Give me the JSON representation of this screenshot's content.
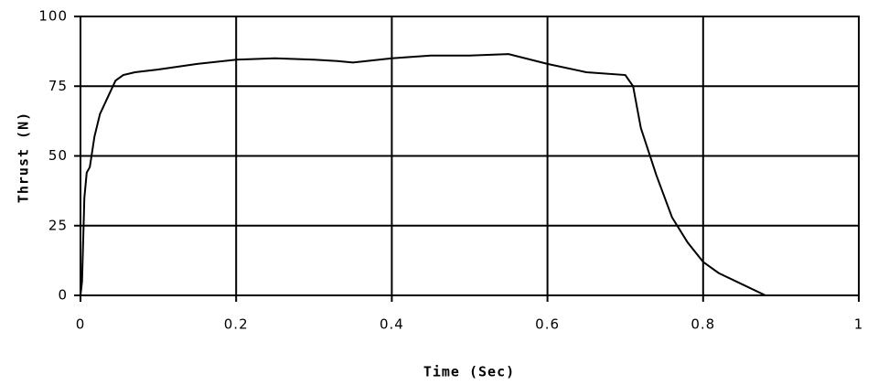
{
  "chart_data": {
    "type": "line",
    "xlabel": "Time (Sec)",
    "ylabel": "Thrust (N)",
    "x": [
      0,
      0.002,
      0.005,
      0.008,
      0.012,
      0.018,
      0.025,
      0.035,
      0.045,
      0.055,
      0.07,
      0.1,
      0.15,
      0.2,
      0.25,
      0.3,
      0.33,
      0.35,
      0.4,
      0.45,
      0.5,
      0.55,
      0.6,
      0.65,
      0.7,
      0.71,
      0.72,
      0.74,
      0.76,
      0.78,
      0.8,
      0.82,
      0.85,
      0.88
    ],
    "values": [
      0,
      5,
      35,
      44,
      46,
      57,
      65,
      71,
      77,
      79,
      80,
      81,
      83,
      84.5,
      85,
      84.5,
      84,
      83.5,
      85,
      86,
      86,
      86.5,
      83,
      80,
      79,
      75,
      60,
      43,
      28,
      19,
      12,
      8,
      4,
      0
    ],
    "color": "#000000",
    "xlim": [
      0,
      1
    ],
    "xticks": [
      0,
      0.2,
      0.4,
      0.6,
      0.8,
      1
    ],
    "ylim": [
      0,
      100
    ],
    "yticks": [
      0,
      25,
      50,
      75,
      100
    ],
    "grid": true
  }
}
